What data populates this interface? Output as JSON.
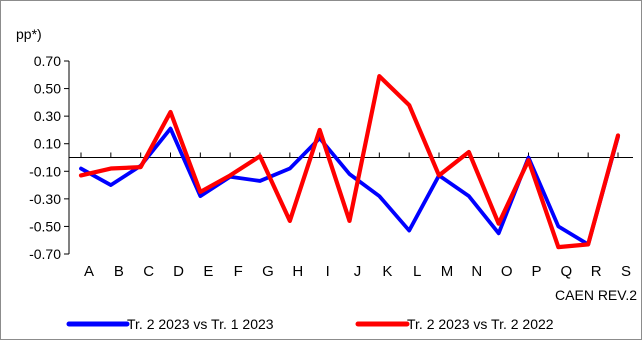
{
  "chart_data": {
    "type": "line",
    "title": "",
    "ylabel": "pp*)",
    "xlabel": "CAEN REV.2",
    "ylim": [
      -0.7,
      0.7
    ],
    "yticks": [
      "0.70",
      "0.50",
      "0.30",
      "0.10",
      "-0.10",
      "-0.30",
      "-0.50",
      "-0.70"
    ],
    "categories": [
      "A",
      "B",
      "C",
      "D",
      "E",
      "F",
      "G",
      "H",
      "I",
      "J",
      "K",
      "L",
      "M",
      "N",
      "O",
      "P",
      "Q",
      "R",
      "S"
    ],
    "series": [
      {
        "name": "Tr. 2 2023 vs Tr. 1 2023",
        "color": "#0000ff",
        "values": [
          -0.08,
          -0.2,
          -0.06,
          0.21,
          -0.28,
          -0.14,
          -0.17,
          -0.08,
          0.14,
          -0.12,
          -0.28,
          -0.53,
          -0.13,
          -0.28,
          -0.55,
          0.0,
          -0.5,
          -0.63,
          0.15
        ]
      },
      {
        "name": "Tr. 2 2023 vs Tr. 2 2022",
        "color": "#ff0000",
        "values": [
          -0.13,
          -0.08,
          -0.07,
          0.33,
          -0.25,
          -0.13,
          0.01,
          -0.46,
          0.2,
          -0.46,
          0.59,
          0.38,
          -0.13,
          0.04,
          -0.48,
          -0.02,
          -0.65,
          -0.63,
          0.16
        ]
      }
    ],
    "grid": false,
    "legend_position": "bottom"
  }
}
